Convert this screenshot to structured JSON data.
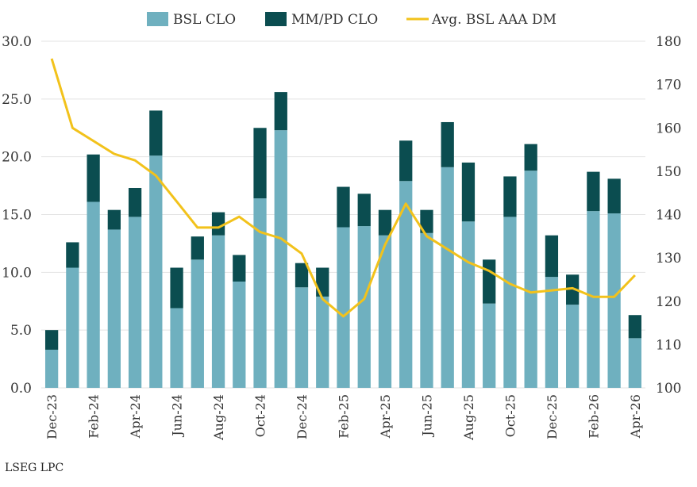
{
  "source_note": "LSEG LPC",
  "chart_data": {
    "type": "bar",
    "stacked": true,
    "colors": {
      "bsl": "#6fb0bf",
      "mmpd": "#0b4d50",
      "line": "#f2c21b",
      "grid": "#e3e3e3"
    },
    "legend": {
      "placement": "top-center",
      "items": [
        "BSL CLO",
        "MM/PD CLO",
        "Avg. BSL AAA DM"
      ]
    },
    "categories": [
      "Dec-23",
      "Jan-24",
      "Feb-24",
      "Mar-24",
      "Apr-24",
      "May-24",
      "Jun-24",
      "Jul-24",
      "Aug-24",
      "Sep-24",
      "Oct-24",
      "Nov-24",
      "Dec-24",
      "Jan-25",
      "Feb-25",
      "Mar-25",
      "Apr-25",
      "May-25",
      "Jun-25",
      "Jul-25",
      "Aug-25",
      "Sep-25",
      "Oct-25",
      "Nov-25",
      "Dec-25",
      "Jan-26",
      "Feb-26",
      "Mar-26",
      "Apr-26"
    ],
    "x_tick_labels": [
      "Dec-23",
      "",
      "Feb-24",
      "",
      "Apr-24",
      "",
      "Jun-24",
      "",
      "Aug-24",
      "",
      "Oct-24",
      "",
      "Dec-24",
      "",
      "Feb-25",
      "",
      "Apr-25",
      "",
      "Jun-25",
      "",
      "Aug-25",
      "",
      "Oct-25",
      "",
      "Dec-25",
      "",
      "Feb-26",
      "",
      "Apr-26"
    ],
    "series": [
      {
        "name": "BSL CLO",
        "kind": "bar",
        "axis": "left",
        "values": [
          3.3,
          10.4,
          16.1,
          13.7,
          14.8,
          20.1,
          6.9,
          11.1,
          13.2,
          9.2,
          16.4,
          22.3,
          8.7,
          7.9,
          13.9,
          14.0,
          13.2,
          17.9,
          13.4,
          19.1,
          14.4,
          7.3,
          14.8,
          18.8,
          9.6,
          7.2,
          15.3,
          15.1,
          4.3
        ]
      },
      {
        "name": "MM/PD CLO",
        "kind": "bar",
        "axis": "left",
        "values": [
          1.7,
          2.2,
          4.1,
          1.7,
          2.5,
          3.9,
          3.5,
          2.0,
          2.0,
          2.3,
          6.1,
          3.3,
          2.1,
          2.5,
          3.5,
          2.8,
          2.2,
          3.5,
          2.0,
          3.9,
          5.1,
          3.8,
          3.5,
          2.3,
          3.6,
          2.6,
          3.4,
          3.0,
          2.0
        ]
      },
      {
        "name": "Avg. BSL AAA DM",
        "kind": "line",
        "axis": "right",
        "values": [
          176,
          160,
          157,
          154,
          152.5,
          149,
          143,
          137,
          137,
          139.5,
          136,
          134.5,
          131,
          120.5,
          116.5,
          120.5,
          133,
          142.5,
          135,
          132,
          129,
          127,
          124,
          122,
          122.5,
          123,
          121,
          121,
          126
        ]
      }
    ],
    "y_left": {
      "min": 0,
      "max": 30,
      "ticks": [
        "0.0",
        "5.0",
        "10.0",
        "15.0",
        "20.0",
        "25.0",
        "30.0"
      ]
    },
    "y_right": {
      "min": 100,
      "max": 180,
      "ticks": [
        "100",
        "110",
        "120",
        "130",
        "140",
        "150",
        "160",
        "170",
        "180"
      ]
    },
    "grid": true
  }
}
